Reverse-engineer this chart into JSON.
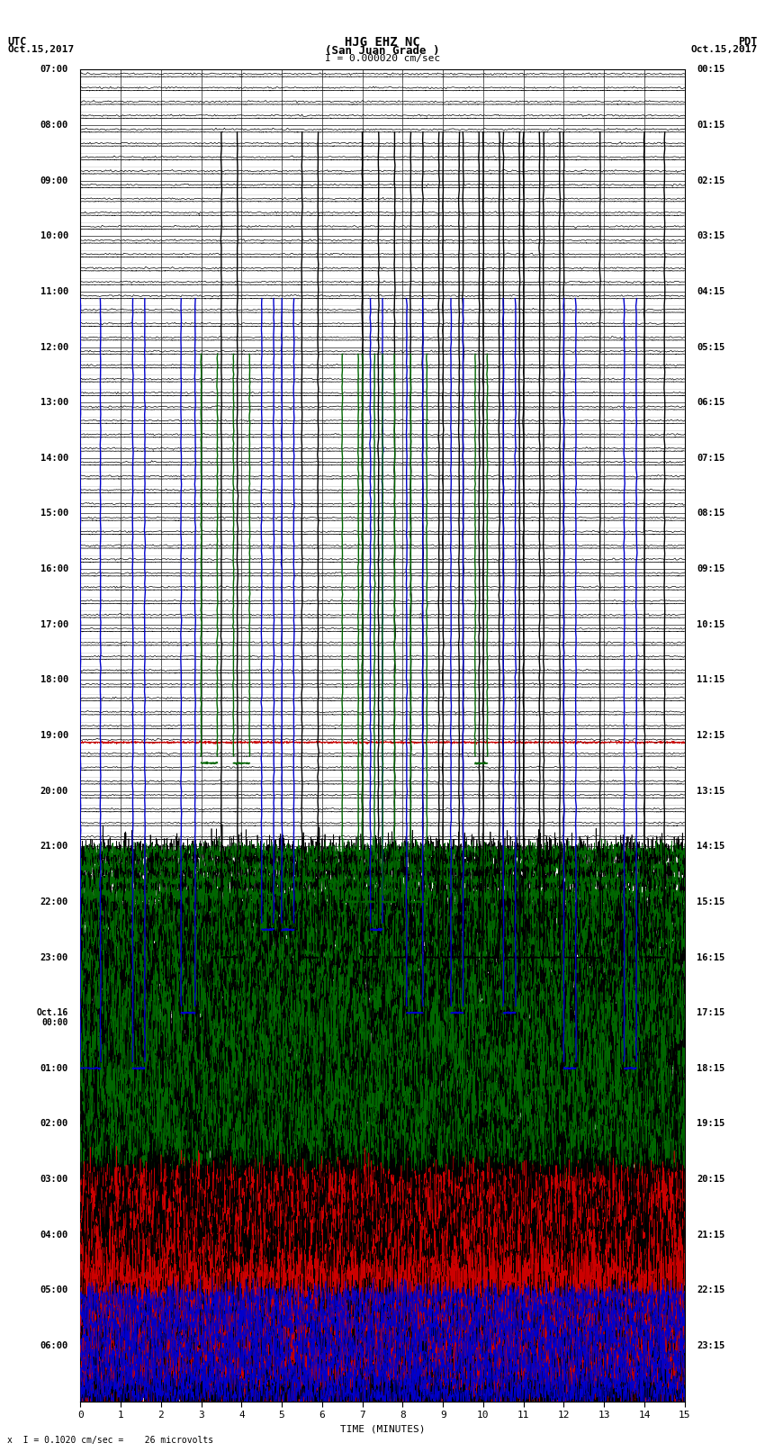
{
  "title_line1": "HJG EHZ NC",
  "title_line2": "(San Juan Grade )",
  "title_scale": "I = 0.000020 cm/sec",
  "left_label_top": "UTC",
  "left_label_date": "Oct.15,2017",
  "right_label_top": "PDT",
  "right_label_date": "Oct.15,2017",
  "left_times_utc": [
    "07:00",
    "",
    "",
    "",
    "08:00",
    "",
    "",
    "",
    "09:00",
    "",
    "",
    "",
    "10:00",
    "",
    "",
    "",
    "11:00",
    "",
    "",
    "",
    "12:00",
    "",
    "",
    "",
    "13:00",
    "",
    "",
    "",
    "14:00",
    "",
    "",
    "",
    "15:00",
    "",
    "",
    "",
    "16:00",
    "",
    "",
    "",
    "17:00",
    "",
    "",
    "",
    "18:00",
    "",
    "",
    "",
    "19:00",
    "",
    "",
    "",
    "20:00",
    "",
    "",
    "",
    "21:00",
    "",
    "",
    "",
    "22:00",
    "",
    "",
    "",
    "23:00",
    "",
    "",
    "",
    "Oct.16\n00:00",
    "",
    "",
    "",
    "01:00",
    "",
    "",
    "",
    "02:00",
    "",
    "",
    "",
    "03:00",
    "",
    "",
    "",
    "04:00",
    "",
    "",
    "",
    "05:00",
    "",
    "",
    "",
    "06:00",
    "",
    "",
    ""
  ],
  "right_times_pdt": [
    "00:15",
    "",
    "",
    "",
    "01:15",
    "",
    "",
    "",
    "02:15",
    "",
    "",
    "",
    "03:15",
    "",
    "",
    "",
    "04:15",
    "",
    "",
    "",
    "05:15",
    "",
    "",
    "",
    "06:15",
    "",
    "",
    "",
    "07:15",
    "",
    "",
    "",
    "08:15",
    "",
    "",
    "",
    "09:15",
    "",
    "",
    "",
    "10:15",
    "",
    "",
    "",
    "11:15",
    "",
    "",
    "",
    "12:15",
    "",
    "",
    "",
    "13:15",
    "",
    "",
    "",
    "14:15",
    "",
    "",
    "",
    "15:15",
    "",
    "",
    "",
    "16:15",
    "",
    "",
    "",
    "17:15",
    "",
    "",
    "",
    "18:15",
    "",
    "",
    "",
    "19:15",
    "",
    "",
    "",
    "20:15",
    "",
    "",
    "",
    "21:15",
    "",
    "",
    "",
    "22:15",
    "",
    "",
    "",
    "23:15",
    "",
    "",
    ""
  ],
  "bottom_label": "TIME (MINUTES)",
  "bottom_note": "x  I = 0.1020 cm/sec =    26 microvolts",
  "bg_color": "#ffffff",
  "blue": "#0000cc",
  "green": "#006600",
  "red": "#cc0000",
  "black": "#000000",
  "n_hours": 24,
  "n_subrows": 4,
  "n_minutes": 15,
  "quiet_rows": 14,
  "noisy_rows": 10,
  "upper_seg_color": "#000000",
  "minor_grid_color": "#aaaaaa",
  "major_grid_color": "#333333"
}
